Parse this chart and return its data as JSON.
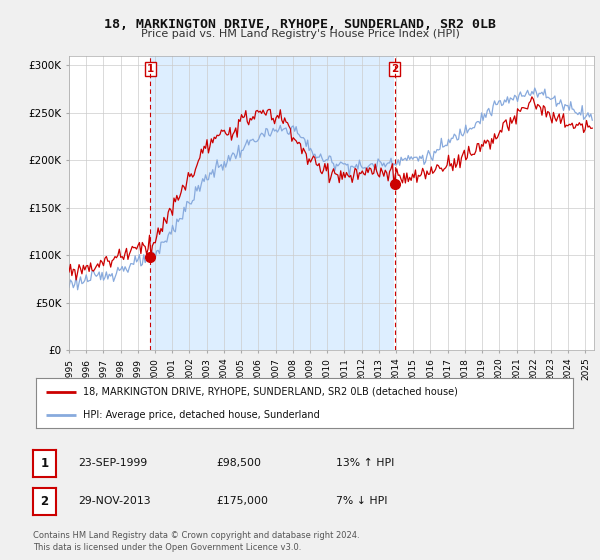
{
  "title_line1": "18, MARKINGTON DRIVE, RYHOPE, SUNDERLAND, SR2 0LB",
  "title_line2": "Price paid vs. HM Land Registry's House Price Index (HPI)",
  "xlim_start": 1995.0,
  "xlim_end": 2025.5,
  "ylim": [
    0,
    310000
  ],
  "yticks": [
    0,
    50000,
    100000,
    150000,
    200000,
    250000,
    300000
  ],
  "ytick_labels": [
    "£0",
    "£50K",
    "£100K",
    "£150K",
    "£200K",
    "£250K",
    "£300K"
  ],
  "transaction1_date": 1999.73,
  "transaction1_price": 98500,
  "transaction2_date": 2013.91,
  "transaction2_price": 175000,
  "line_color_property": "#cc0000",
  "line_color_hpi": "#88aadd",
  "shade_color": "#ddeeff",
  "legend_label1": "18, MARKINGTON DRIVE, RYHOPE, SUNDERLAND, SR2 0LB (detached house)",
  "legend_label2": "HPI: Average price, detached house, Sunderland",
  "table_row1": [
    "1",
    "23-SEP-1999",
    "£98,500",
    "13% ↑ HPI"
  ],
  "table_row2": [
    "2",
    "29-NOV-2013",
    "£175,000",
    "7% ↓ HPI"
  ],
  "footnote": "Contains HM Land Registry data © Crown copyright and database right 2024.\nThis data is licensed under the Open Government Licence v3.0.",
  "background_color": "#f0f0f0",
  "plot_background": "#ffffff",
  "grid_color": "#cccccc"
}
